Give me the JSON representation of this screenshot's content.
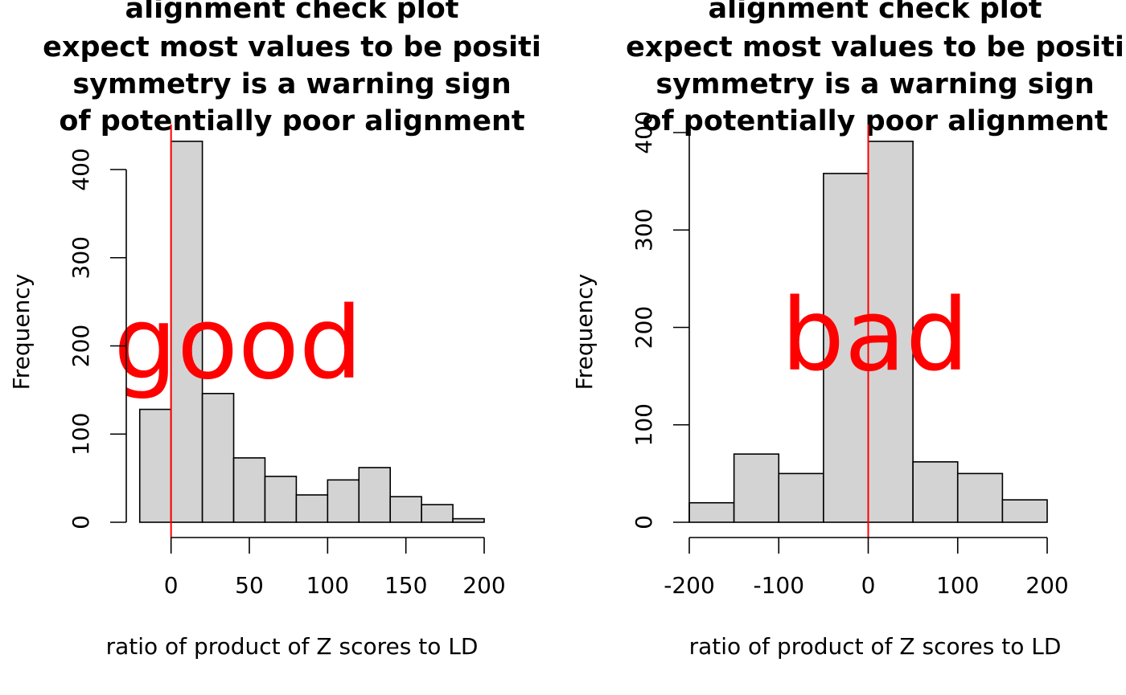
{
  "chart_data": [
    {
      "type": "bar",
      "subtype": "histogram",
      "title_lines": [
        "alignment check plot",
        "expect most values to be positi",
        "symmetry is a warning sign",
        "of potentially poor alignment"
      ],
      "xlabel": "ratio of product of Z scores to LD",
      "ylabel": "Frequency",
      "annotation": "good",
      "annotation_color": "#ff0000",
      "bar_color": "#d3d3d3",
      "refline_x": 0,
      "refline_color": "#ff0000",
      "bins": [
        {
          "x0": -20,
          "x1": 0,
          "count": 128
        },
        {
          "x0": 0,
          "x1": 20,
          "count": 432
        },
        {
          "x0": 20,
          "x1": 40,
          "count": 146
        },
        {
          "x0": 40,
          "x1": 60,
          "count": 73
        },
        {
          "x0": 60,
          "x1": 80,
          "count": 52
        },
        {
          "x0": 80,
          "x1": 100,
          "count": 31
        },
        {
          "x0": 100,
          "x1": 120,
          "count": 48
        },
        {
          "x0": 120,
          "x1": 140,
          "count": 62
        },
        {
          "x0": 140,
          "x1": 160,
          "count": 29
        },
        {
          "x0": 160,
          "x1": 180,
          "count": 20
        },
        {
          "x0": 180,
          "x1": 200,
          "count": 4
        }
      ],
      "xticks": [
        0,
        50,
        100,
        150,
        200
      ],
      "xtick_labels": [
        "0",
        "50",
        "100",
        "150",
        "200"
      ],
      "yticks": [
        0,
        100,
        200,
        300,
        400
      ],
      "ytick_labels": [
        "0",
        "100",
        "200",
        "300",
        "400"
      ],
      "xlim": [
        -28.6,
        200
      ],
      "ylim": [
        0,
        450
      ]
    },
    {
      "type": "bar",
      "subtype": "histogram",
      "title_lines": [
        "alignment check plot",
        "expect most values to be positi",
        "symmetry is a warning sign",
        "of potentially poor alignment"
      ],
      "xlabel": "ratio of product of Z scores to LD",
      "ylabel": "Frequency",
      "annotation": "bad",
      "annotation_color": "#ff0000",
      "bar_color": "#d3d3d3",
      "refline_x": 0,
      "refline_color": "#ff0000",
      "bins": [
        {
          "x0": -200,
          "x1": -150,
          "count": 20
        },
        {
          "x0": -150,
          "x1": -100,
          "count": 70
        },
        {
          "x0": -100,
          "x1": -50,
          "count": 50
        },
        {
          "x0": -50,
          "x1": 0,
          "count": 358
        },
        {
          "x0": 0,
          "x1": 50,
          "count": 391
        },
        {
          "x0": 50,
          "x1": 100,
          "count": 62
        },
        {
          "x0": 100,
          "x1": 150,
          "count": 50
        },
        {
          "x0": 150,
          "x1": 200,
          "count": 23
        }
      ],
      "xticks": [
        -200,
        -100,
        0,
        100,
        200
      ],
      "xtick_labels": [
        "-200",
        "-100",
        "0",
        "100",
        "200"
      ],
      "yticks": [
        0,
        100,
        200,
        300,
        400
      ],
      "ytick_labels": [
        "0",
        "100",
        "200",
        "300",
        "400"
      ],
      "xlim": [
        -200,
        200
      ],
      "ylim": [
        0,
        400
      ]
    }
  ]
}
